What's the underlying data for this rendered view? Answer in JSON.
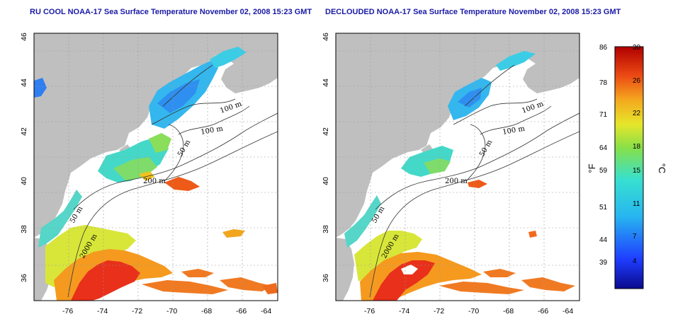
{
  "titles": {
    "left": "RU COOL NOAA-17 Sea Surface Temperature November 02, 2008 15:23 GMT",
    "right": "DECLOUDED NOAA-17 Sea Surface Temperature November 02, 2008 15:23 GMT"
  },
  "axes": {
    "lon_ticks": [
      "-76",
      "-74",
      "-72",
      "-70",
      "-68",
      "-66",
      "-64"
    ],
    "lat_ticks": [
      "46",
      "44",
      "42",
      "40",
      "38",
      "36"
    ]
  },
  "contour_labels": {
    "left": [
      "100 m",
      "100 m",
      "50 m",
      "200 m",
      "50 m",
      "2000 m"
    ],
    "right": [
      "100 m",
      "100 m",
      "50 m",
      "200 m",
      "50 m",
      "2000 m"
    ]
  },
  "colorbar": {
    "fahrenheit_ticks": [
      "86",
      "78",
      "71",
      "64",
      "59",
      "51",
      "44",
      "39"
    ],
    "celsius_ticks": [
      "30",
      "26",
      "22",
      "18",
      "15",
      "11",
      "7",
      "4"
    ],
    "fahrenheit_unit": "°F",
    "celsius_unit": "°C"
  },
  "colors": {
    "land": "#bfbfbf",
    "title": "#1a1aa6",
    "cold": "#0a0a8c",
    "warm": "#b00000"
  }
}
